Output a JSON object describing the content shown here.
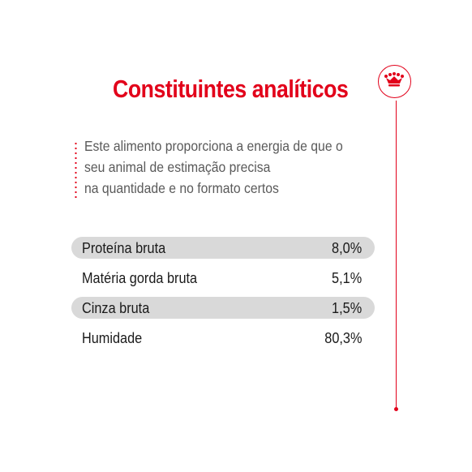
{
  "colors": {
    "accent": "#e2001a",
    "row_shaded": "#d9d9d9",
    "row_plain": "#ffffff"
  },
  "title": "Constituintes analíticos",
  "description": [
    "Este alimento proporciona a energia de que o",
    "seu animal de estimação precisa",
    "na quantidade e no formato certos"
  ],
  "rows": [
    {
      "label": "Proteína bruta",
      "value": "8,0%",
      "shaded": true
    },
    {
      "label": "Matéria gorda bruta",
      "value": "5,1%",
      "shaded": false
    },
    {
      "label": "Cinza bruta",
      "value": "1,5%",
      "shaded": true
    },
    {
      "label": "Humidade",
      "value": "80,3%",
      "shaded": false
    }
  ],
  "logo_icon": "crown-icon"
}
